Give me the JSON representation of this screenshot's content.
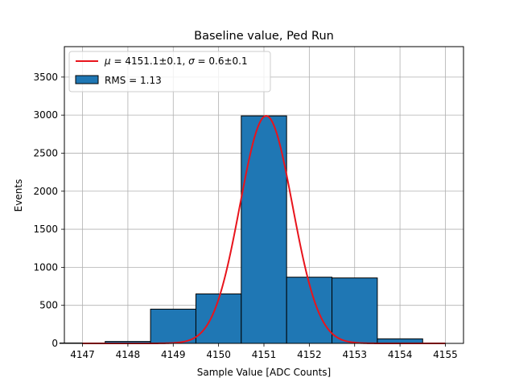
{
  "chart_data": {
    "type": "bar",
    "title": "Baseline value, Ped Run",
    "xlabel": "Sample Value [ADC Counts]",
    "ylabel": "Events",
    "xlim": [
      4146.6,
      4155.4
    ],
    "ylim": [
      0,
      3900
    ],
    "x_ticks": [
      4147,
      4148,
      4149,
      4150,
      4151,
      4152,
      4153,
      4154,
      4155
    ],
    "y_ticks": [
      0,
      500,
      1000,
      1500,
      2000,
      2500,
      3000,
      3500
    ],
    "grid": true,
    "legend_position": "top-left",
    "histogram": {
      "name": "RMS = 1.13",
      "color": "#1f77b4",
      "edge_color": "#000000",
      "bin_edges": [
        4146.5,
        4147.5,
        4148.5,
        4149.5,
        4150.5,
        4151.5,
        4152.5,
        4153.5,
        4154.5
      ],
      "bin_width": 1.0,
      "values": [
        5,
        25,
        450,
        650,
        2990,
        870,
        860,
        60
      ]
    },
    "fit": {
      "name": "μ = 4151.1±0.1, σ = 0.6±0.1",
      "name_parts": {
        "mu_symbol": "μ",
        "mu_text": " = 4151.1±0.1, ",
        "sigma_symbol": "σ",
        "sigma_text": " = 0.6±0.1"
      },
      "color": "#e8141c",
      "model": "gaussian",
      "amplitude": 2990,
      "mean": 4151.05,
      "sigma": 0.58,
      "x_range": [
        4147,
        4155
      ]
    }
  }
}
